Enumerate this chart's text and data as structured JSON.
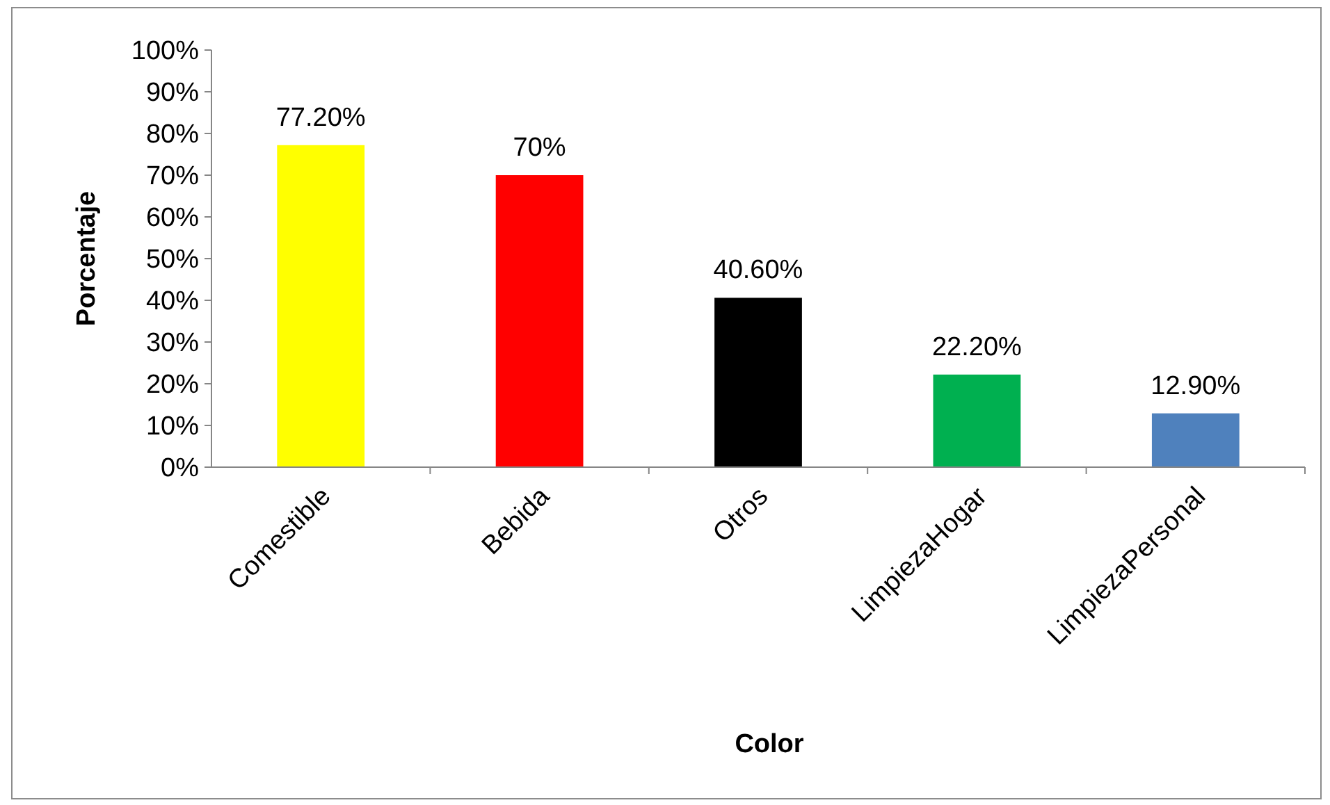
{
  "chart_data": {
    "type": "bar",
    "xlabel": "Color",
    "ylabel": "Porcentaje",
    "categories": [
      "Comestible",
      "Bebida",
      "Otros",
      "LimpiezaHogar",
      "LimpiezaPersonal"
    ],
    "values": [
      77.2,
      70,
      40.6,
      22.2,
      12.9
    ],
    "colors": [
      "#ffff00",
      "#ff0000",
      "#000000",
      "#00b050",
      "#4f81bd"
    ],
    "value_labels": [
      "77.20%",
      "70%",
      "40.60%",
      "22.20%",
      "12.90%"
    ],
    "ylim": [
      0,
      100
    ],
    "yticks": [
      {
        "value": 0,
        "label": "0%"
      },
      {
        "value": 10,
        "label": "10%"
      },
      {
        "value": 20,
        "label": "20%"
      },
      {
        "value": 30,
        "label": "30%"
      },
      {
        "value": 40,
        "label": "40%"
      },
      {
        "value": 50,
        "label": "50%"
      },
      {
        "value": 60,
        "label": "60%"
      },
      {
        "value": 70,
        "label": "70%"
      },
      {
        "value": 80,
        "label": "80%"
      },
      {
        "value": 90,
        "label": "90%"
      },
      {
        "value": 100,
        "label": "100%"
      }
    ],
    "grid": false
  }
}
